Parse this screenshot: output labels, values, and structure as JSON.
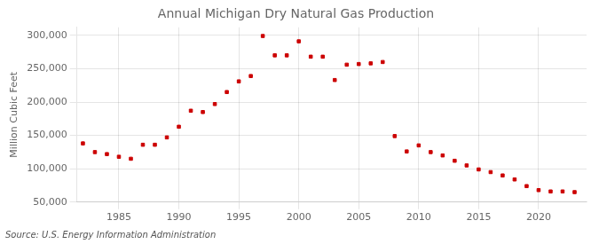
{
  "chart_data": {
    "type": "scatter",
    "title": "Annual Michigan Dry Natural Gas Production",
    "y_label": "Million Cubic Feet",
    "annotations": [
      "Source: U.S. Energy Information Administration"
    ],
    "x": [
      1982,
      1983,
      1984,
      1985,
      1986,
      1987,
      1988,
      1989,
      1990,
      1991,
      1992,
      1993,
      1994,
      1995,
      1996,
      1997,
      1998,
      1999,
      2000,
      2001,
      2002,
      2003,
      2004,
      2005,
      2006,
      2007,
      2008,
      2009,
      2010,
      2011,
      2012,
      2013,
      2014,
      2015,
      2016,
      2017,
      2018,
      2019,
      2020,
      2021,
      2022,
      2023
    ],
    "values": [
      138000,
      125000,
      122000,
      118000,
      115000,
      136000,
      136000,
      147000,
      163000,
      187000,
      185000,
      197000,
      215000,
      231000,
      239000,
      299000,
      270000,
      270000,
      291000,
      268000,
      268000,
      233000,
      256000,
      257000,
      258000,
      260000,
      149000,
      126000,
      135000,
      125000,
      120000,
      112000,
      105000,
      99000,
      95000,
      90000,
      84000,
      74000,
      68000,
      66000,
      66000,
      65000
    ],
    "color": "#cc0000",
    "marker": "square",
    "xlim": [
      1981.5,
      2024
    ],
    "ylim": [
      50000,
      312000
    ],
    "xticks": [
      1985,
      1990,
      1995,
      2000,
      2005,
      2010,
      2015,
      2020
    ],
    "yticks": [
      {
        "value": 50000,
        "label": "50,000"
      },
      {
        "value": 100000,
        "label": "100,000"
      },
      {
        "value": 150000,
        "label": "150,000"
      },
      {
        "value": 200000,
        "label": "200,000"
      },
      {
        "value": 250000,
        "label": "250,000"
      },
      {
        "value": 300000,
        "label": "300,000"
      }
    ],
    "grid": true
  }
}
